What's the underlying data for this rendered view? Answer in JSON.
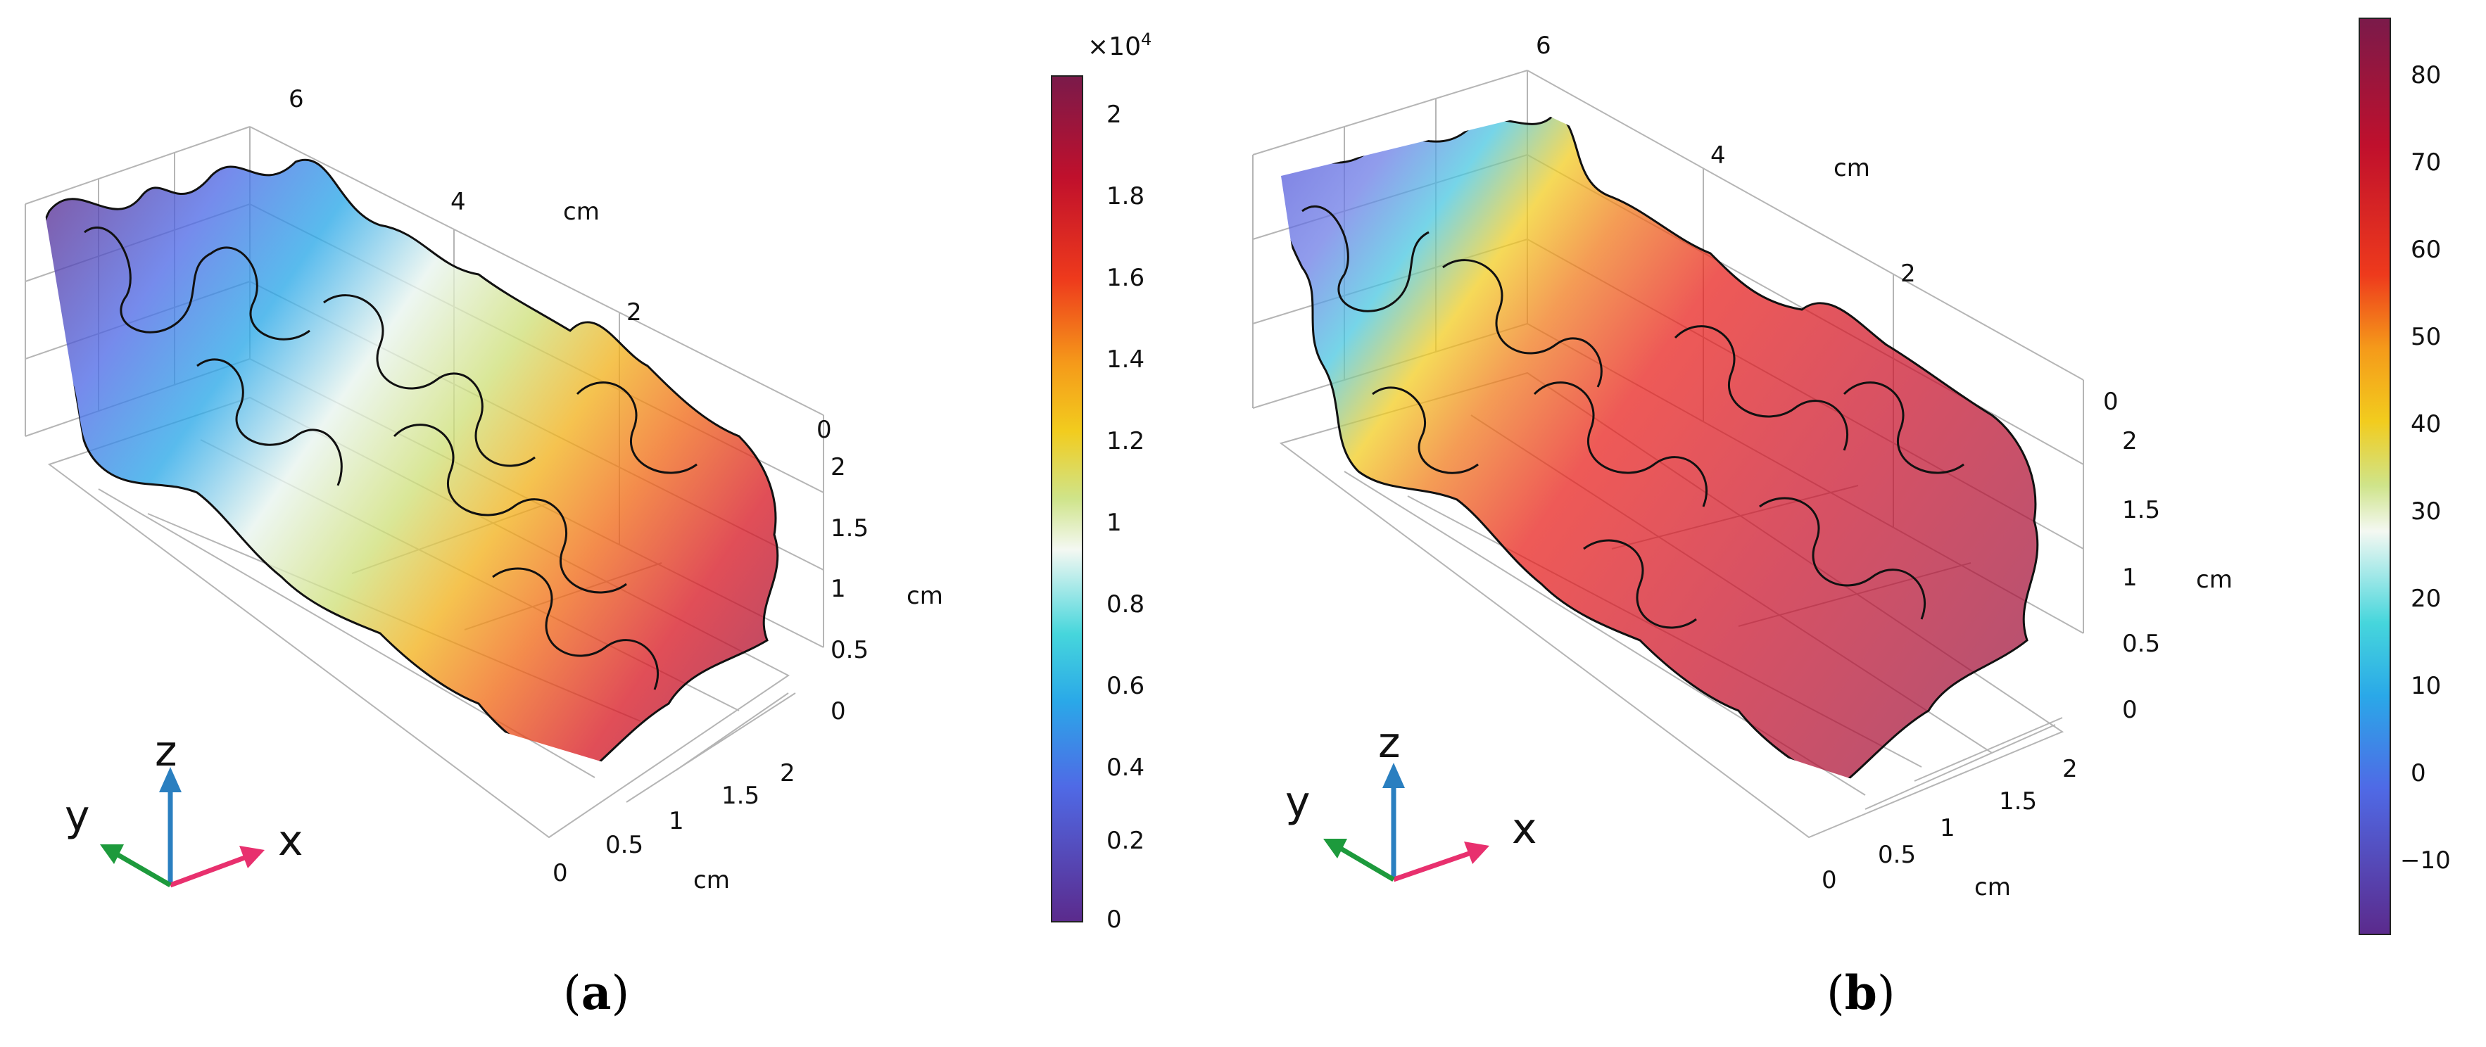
{
  "figure": {
    "panels": [
      {
        "label": "a",
        "axes": {
          "x_ticks": [
            "0",
            "0.5",
            "1",
            "1.5",
            "2"
          ],
          "y_ticks": [
            "6",
            "4",
            "2",
            "0"
          ],
          "z_ticks": [
            "2",
            "1.5",
            "1",
            "0.5",
            "0"
          ],
          "unit": "cm"
        },
        "triad": {
          "x": "x",
          "y": "y",
          "z": "z"
        },
        "colorbar": {
          "multiplier": "×10",
          "exponent": "4",
          "ticks": [
            "2",
            "1.8",
            "1.6",
            "1.4",
            "1.2",
            "1",
            "0.8",
            "0.6",
            "0.4",
            "0.2",
            "0"
          ]
        }
      },
      {
        "label": "b",
        "axes": {
          "x_ticks": [
            "0",
            "0.5",
            "1",
            "1.5",
            "2"
          ],
          "y_ticks": [
            "6",
            "4",
            "2",
            "0"
          ],
          "z_ticks": [
            "2",
            "1.5",
            "1",
            "0.5",
            "0"
          ],
          "unit": "cm"
        },
        "triad": {
          "x": "x",
          "y": "y",
          "z": "z"
        },
        "colorbar": {
          "ticks": [
            "80",
            "70",
            "60",
            "50",
            "40",
            "30",
            "20",
            "10",
            "0",
            "−10"
          ]
        }
      }
    ],
    "colors": {
      "colormap": [
        "#7a1a4a",
        "#b3102c",
        "#e8201c",
        "#f47a1a",
        "#f2c21e",
        "#cfe07a",
        "#f2f6f0",
        "#3ed2dc",
        "#2aa8e8",
        "#4f6ae6",
        "#5b2a8c"
      ],
      "x_arrow": "#e8306e",
      "y_arrow": "#1d9a3c",
      "z_arrow": "#2a7fc0"
    }
  }
}
